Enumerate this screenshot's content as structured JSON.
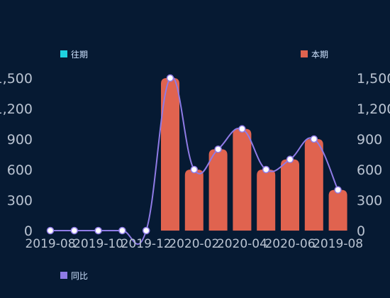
{
  "chart_data": {
    "type": "bar",
    "categories": [
      "2019-08",
      "2019-09",
      "2019-10",
      "2019-11",
      "2019-12",
      "2020-01",
      "2020-02",
      "2020-03",
      "2020-04",
      "2020-05",
      "2020-06",
      "2020-07",
      "2019-08"
    ],
    "x_tick_labels": [
      "2019-08",
      "2019-10",
      "2019-12",
      "2020-02",
      "2020-04",
      "2020-06",
      "2019-08"
    ],
    "series": [
      {
        "name": "往期",
        "type": "bar",
        "color": "#1fd2e0",
        "values": [
          0,
          0,
          0,
          0,
          0,
          0,
          0,
          0,
          0,
          0,
          0,
          0,
          0
        ]
      },
      {
        "name": "本期",
        "type": "bar",
        "color": "#e0634f",
        "values": [
          0,
          0,
          0,
          0,
          0,
          1500,
          600,
          800,
          1000,
          600,
          700,
          900,
          400
        ]
      },
      {
        "name": "同比",
        "type": "line",
        "color": "#8f7be6",
        "values": [
          0,
          0,
          0,
          0,
          0,
          1500,
          600,
          800,
          1000,
          600,
          700,
          900,
          400
        ]
      }
    ],
    "ylim": [
      0,
      1500
    ],
    "y_ticks": [
      "0",
      "300",
      "600",
      "900",
      "1,200",
      "1,500"
    ],
    "y_right_ticks": [
      "0",
      "300",
      "600",
      "900",
      "1,200",
      "1,500"
    ],
    "grid": false,
    "legend": [
      "top-left",
      "top-right",
      "bottom-left"
    ]
  }
}
